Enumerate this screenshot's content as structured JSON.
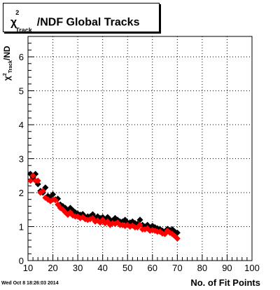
{
  "chart_data": {
    "type": "scatter",
    "title": {
      "chi": "χ",
      "sup": "2",
      "sub": "Track",
      "rest": "/NDF  Global Tracks"
    },
    "ylabel": {
      "chi": "χ",
      "sup": "2",
      "sub": "Track",
      "rest": "/ND"
    },
    "xlabel": "No. of Fit Points",
    "xlim": [
      10,
      100
    ],
    "ylim": [
      0,
      6.6
    ],
    "xticks": [
      10,
      20,
      30,
      40,
      50,
      60,
      70,
      80,
      90,
      100
    ],
    "yticks": [
      0,
      1,
      2,
      3,
      4,
      5,
      6
    ],
    "grid": true,
    "series": [
      {
        "color": "#000000",
        "x": [
          11,
          12,
          13,
          14,
          15,
          16,
          17,
          18,
          19,
          20,
          21,
          22,
          23,
          24,
          25,
          26,
          27,
          28,
          29,
          30,
          31,
          32,
          33,
          34,
          35,
          36,
          37,
          38,
          39,
          40,
          41,
          42,
          43,
          44,
          45,
          46,
          47,
          48,
          49,
          50,
          51,
          52,
          53,
          54,
          55,
          56,
          57,
          58,
          59,
          60,
          61,
          62,
          63,
          64,
          65,
          66,
          67,
          68,
          69,
          70
        ],
        "values": [
          2.55,
          2.45,
          2.55,
          2.25,
          2.05,
          2.0,
          2.15,
          1.9,
          1.85,
          1.95,
          1.8,
          1.82,
          1.65,
          1.6,
          1.55,
          1.45,
          1.55,
          1.48,
          1.42,
          1.38,
          1.35,
          1.37,
          1.28,
          1.3,
          1.3,
          1.36,
          1.25,
          1.3,
          1.25,
          1.28,
          1.2,
          1.28,
          1.2,
          1.18,
          1.25,
          1.2,
          1.15,
          1.15,
          1.2,
          1.12,
          1.12,
          1.15,
          1.1,
          1.08,
          1.2,
          1.05,
          1.0,
          1.05,
          0.95,
          1.02,
          0.98,
          0.95,
          0.93,
          0.88,
          0.85,
          0.93,
          0.9,
          0.92,
          0.85,
          0.82
        ]
      },
      {
        "color": "#ff0000",
        "x": [
          11,
          12,
          13,
          14,
          15,
          16,
          17,
          18,
          19,
          20,
          21,
          22,
          23,
          24,
          25,
          26,
          27,
          28,
          29,
          30,
          31,
          32,
          33,
          34,
          35,
          36,
          37,
          38,
          39,
          40,
          41,
          42,
          43,
          44,
          45,
          46,
          47,
          48,
          49,
          50,
          51,
          52,
          53,
          54,
          55,
          56,
          57,
          58,
          59,
          60,
          61,
          62,
          63,
          64,
          65,
          66,
          67,
          68,
          69,
          70
        ],
        "values": [
          2.35,
          2.5,
          2.35,
          2.35,
          2.0,
          2.05,
          1.85,
          1.8,
          1.75,
          1.8,
          1.78,
          1.65,
          1.55,
          1.5,
          1.42,
          1.35,
          1.42,
          1.33,
          1.3,
          1.3,
          1.25,
          1.28,
          1.22,
          1.2,
          1.22,
          1.25,
          1.15,
          1.18,
          1.12,
          1.2,
          1.1,
          1.15,
          1.05,
          1.1,
          1.08,
          1.12,
          1.05,
          1.05,
          1.02,
          1.05,
          1.0,
          1.03,
          0.98,
          0.98,
          1.05,
          0.92,
          0.92,
          0.95,
          0.88,
          0.9,
          0.88,
          0.85,
          0.85,
          0.8,
          0.78,
          0.88,
          0.82,
          0.78,
          0.72,
          0.65
        ]
      }
    ]
  },
  "footer": {
    "timestamp": "Wed Oct  8 18:26:03 2014"
  }
}
